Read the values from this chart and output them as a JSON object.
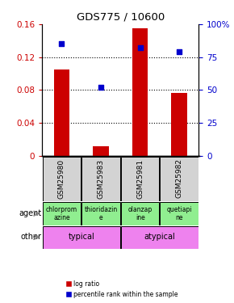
{
  "title": "GDS775 / 10600",
  "samples": [
    "GSM25980",
    "GSM25983",
    "GSM25981",
    "GSM25982"
  ],
  "log_ratios": [
    0.105,
    0.012,
    0.155,
    0.077
  ],
  "percentile_ranks": [
    85,
    52,
    82,
    79
  ],
  "agents": [
    "chlorprom\nazine",
    "thioridazin\ne",
    "olanzap\nine",
    "quetiapi\nne"
  ],
  "agent_colors": [
    "#90ee90",
    "#90ee90",
    "#90ee90",
    "#90ee90"
  ],
  "other_groups": [
    [
      "typical",
      2
    ],
    [
      "atypical",
      2
    ]
  ],
  "other_color": "#ee82ee",
  "ylim_left": [
    0,
    0.16
  ],
  "ylim_right": [
    0,
    100
  ],
  "yticks_left": [
    0,
    0.04,
    0.08,
    0.12,
    0.16
  ],
  "yticks_right": [
    0,
    25,
    50,
    75,
    100
  ],
  "ytick_labels_left": [
    "0",
    "0.04",
    "0.08",
    "0.12",
    "0.16"
  ],
  "ytick_labels_right": [
    "0",
    "25",
    "50",
    "75",
    "100%"
  ],
  "bar_color": "#cc0000",
  "dot_color": "#0000cc",
  "background_color": "#ffffff",
  "label_color_left": "#cc0000",
  "label_color_right": "#0000cc",
  "grid_color": "#000000",
  "sample_box_color": "#d3d3d3"
}
